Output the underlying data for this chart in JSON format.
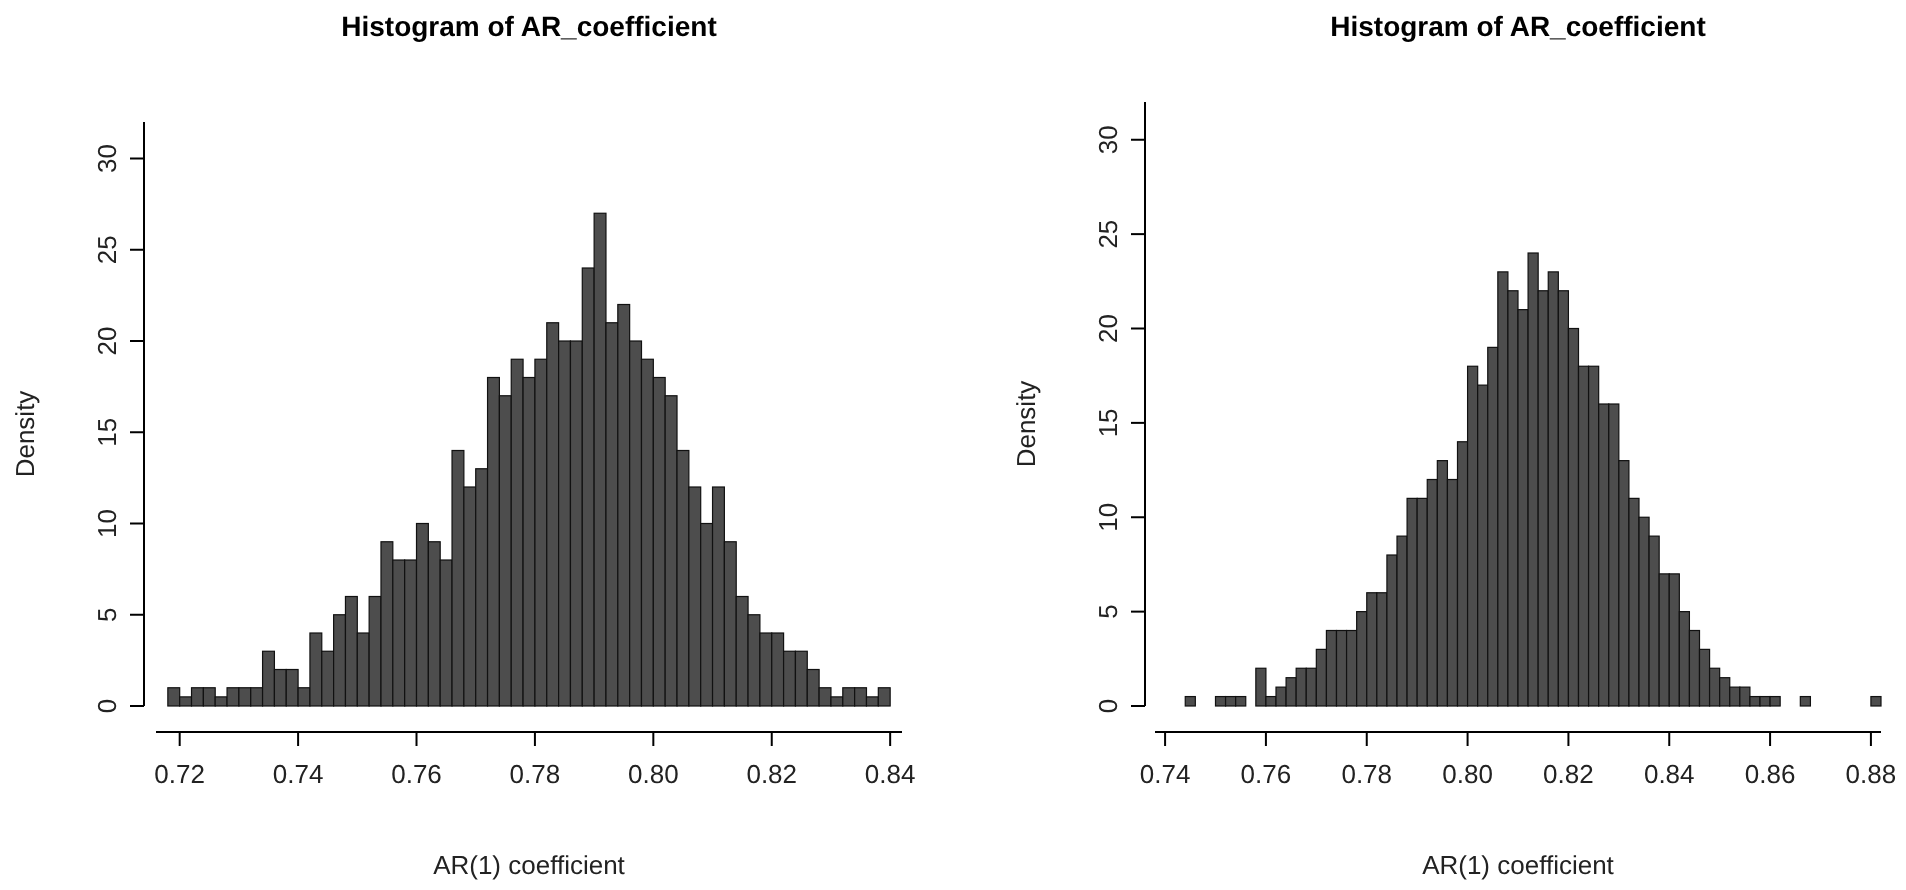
{
  "chart_data": [
    {
      "type": "histogram",
      "title": "Histogram of AR_coefficient",
      "xlabel": "AR(1) coefficient",
      "ylabel": "Density",
      "color": "#4d4d4d",
      "bins": [
        0.718,
        0.72,
        0.722,
        0.724,
        0.726,
        0.728,
        0.73,
        0.732,
        0.734,
        0.736,
        0.738,
        0.74,
        0.742,
        0.744,
        0.746,
        0.748,
        0.75,
        0.752,
        0.754,
        0.756,
        0.758,
        0.76,
        0.762,
        0.764,
        0.766,
        0.768,
        0.77,
        0.772,
        0.774,
        0.776,
        0.778,
        0.78,
        0.782,
        0.784,
        0.786,
        0.788,
        0.79,
        0.792,
        0.794,
        0.796,
        0.798,
        0.8,
        0.802,
        0.804,
        0.806,
        0.808,
        0.81,
        0.812,
        0.814,
        0.816,
        0.818,
        0.82,
        0.822,
        0.824,
        0.826,
        0.828,
        0.83,
        0.832,
        0.834,
        0.836,
        0.838,
        0.84
      ],
      "values": [
        1,
        0.5,
        1,
        1,
        0.5,
        1,
        1,
        1,
        3,
        2,
        2,
        1,
        4,
        3,
        5,
        6,
        4,
        6,
        9,
        8,
        8,
        10,
        9,
        8,
        14,
        12,
        13,
        18,
        17,
        19,
        18,
        19,
        21,
        20,
        20,
        24,
        27,
        21,
        22,
        20,
        19,
        18,
        17,
        14,
        12,
        10,
        12,
        9,
        6,
        5,
        4,
        4,
        3,
        3,
        2,
        1,
        0.5,
        1,
        1,
        0.5,
        1
      ],
      "xlim": [
        0.716,
        0.842
      ],
      "ylim": [
        0,
        32
      ],
      "xticks": [
        {
          "value": 0.72,
          "label": "0.72"
        },
        {
          "value": 0.74,
          "label": "0.74"
        },
        {
          "value": 0.76,
          "label": "0.76"
        },
        {
          "value": 0.78,
          "label": "0.78"
        },
        {
          "value": 0.8,
          "label": "0.80"
        },
        {
          "value": 0.82,
          "label": "0.82"
        },
        {
          "value": 0.84,
          "label": "0.84"
        }
      ],
      "yticks": [
        0,
        5,
        10,
        15,
        20,
        25,
        30
      ]
    },
    {
      "type": "histogram",
      "title": "Histogram of AR_coefficient",
      "xlabel": "AR(1) coefficient",
      "ylabel": "Density",
      "color": "#4d4d4d",
      "bins": [
        0.744,
        0.746,
        0.748,
        0.75,
        0.752,
        0.754,
        0.756,
        0.758,
        0.76,
        0.762,
        0.764,
        0.766,
        0.768,
        0.77,
        0.772,
        0.774,
        0.776,
        0.778,
        0.78,
        0.782,
        0.784,
        0.786,
        0.788,
        0.79,
        0.792,
        0.794,
        0.796,
        0.798,
        0.8,
        0.802,
        0.804,
        0.806,
        0.808,
        0.81,
        0.812,
        0.814,
        0.816,
        0.818,
        0.82,
        0.822,
        0.824,
        0.826,
        0.828,
        0.83,
        0.832,
        0.834,
        0.836,
        0.838,
        0.84,
        0.842,
        0.844,
        0.846,
        0.848,
        0.85,
        0.852,
        0.854,
        0.856,
        0.858,
        0.86,
        0.862,
        0.864,
        0.866,
        0.868,
        0.87,
        0.872,
        0.874,
        0.876,
        0.878,
        0.88,
        0.882
      ],
      "values": [
        0.5,
        0,
        0,
        0.5,
        0.5,
        0.5,
        0,
        2,
        0.5,
        1,
        1.5,
        2,
        2,
        3,
        4,
        4,
        4,
        5,
        6,
        6,
        8,
        9,
        11,
        11,
        12,
        13,
        12,
        14,
        18,
        17,
        19,
        23,
        22,
        21,
        24,
        22,
        23,
        22,
        20,
        18,
        18,
        16,
        16,
        13,
        11,
        10,
        9,
        7,
        7,
        5,
        4,
        3,
        2,
        1.5,
        1,
        1,
        0.5,
        0.5,
        0.5,
        0,
        0,
        0.5,
        0,
        0,
        0,
        0,
        0,
        0,
        0.5
      ],
      "xlim": [
        0.738,
        0.882
      ],
      "ylim": [
        0,
        32
      ],
      "xticks": [
        {
          "value": 0.74,
          "label": "0.74"
        },
        {
          "value": 0.76,
          "label": "0.76"
        },
        {
          "value": 0.78,
          "label": "0.78"
        },
        {
          "value": 0.8,
          "label": "0.80"
        },
        {
          "value": 0.82,
          "label": "0.82"
        },
        {
          "value": 0.84,
          "label": "0.84"
        },
        {
          "value": 0.86,
          "label": "0.86"
        },
        {
          "value": 0.88,
          "label": "0.88"
        }
      ],
      "yticks": [
        0,
        5,
        10,
        15,
        20,
        25,
        30
      ]
    }
  ]
}
